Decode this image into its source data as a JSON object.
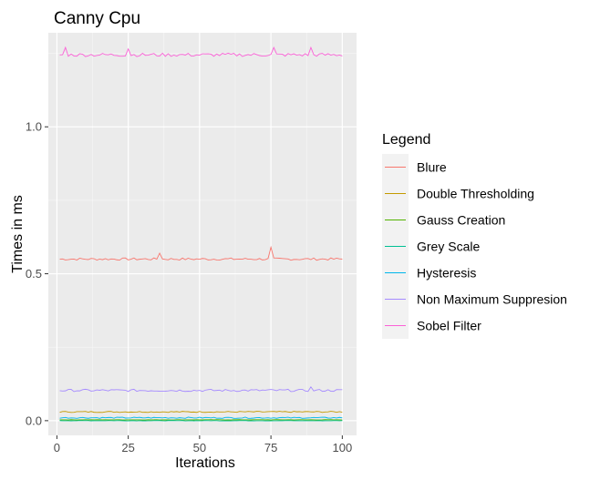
{
  "chart_data": {
    "type": "line",
    "title": "Canny Cpu",
    "xlabel": "Iterations",
    "ylabel": "Times in ms",
    "xlim": [
      -3,
      105
    ],
    "ylim": [
      -0.05,
      1.32
    ],
    "xticks": [
      0,
      25,
      50,
      75,
      100
    ],
    "xtick_labels": [
      "0",
      "25",
      "50",
      "75",
      "100"
    ],
    "yticks": [
      0.0,
      0.5,
      1.0
    ],
    "ytick_labels": [
      "0.0",
      "0.5",
      "1.0"
    ],
    "grid": true,
    "legend_title": "Legend",
    "legend_position": "right",
    "series": [
      {
        "name": "Blure",
        "color": "#F8766D",
        "x_start": 1,
        "x_end": 100,
        "base": 0.55,
        "jitter": 0.004,
        "spikes": [
          {
            "x": 36,
            "y": 0.57
          },
          {
            "x": 75,
            "y": 0.59
          }
        ]
      },
      {
        "name": "Double Thresholding",
        "color": "#C49A00",
        "x_start": 1,
        "x_end": 100,
        "base": 0.03,
        "jitter": 0.002,
        "spikes": []
      },
      {
        "name": "Gauss Creation",
        "color": "#53B400",
        "x_start": 1,
        "x_end": 100,
        "base": 0.003,
        "jitter": 0.0005,
        "spikes": []
      },
      {
        "name": "Grey Scale",
        "color": "#00C094",
        "x_start": 1,
        "x_end": 100,
        "base": 0.0,
        "jitter": 0.0005,
        "spikes": []
      },
      {
        "name": "Hysteresis",
        "color": "#00B6EB",
        "x_start": 1,
        "x_end": 100,
        "base": 0.01,
        "jitter": 0.002,
        "spikes": []
      },
      {
        "name": "Non Maximum Suppresion",
        "color": "#A58AFF",
        "x_start": 1,
        "x_end": 100,
        "base": 0.103,
        "jitter": 0.004,
        "spikes": [
          {
            "x": 89,
            "y": 0.115
          }
        ]
      },
      {
        "name": "Sobel Filter",
        "color": "#FB61D7",
        "x_start": 1,
        "x_end": 100,
        "base": 1.245,
        "jitter": 0.006,
        "spikes": [
          {
            "x": 3,
            "y": 1.27
          },
          {
            "x": 25,
            "y": 1.265
          },
          {
            "x": 76,
            "y": 1.27
          },
          {
            "x": 89,
            "y": 1.27
          }
        ]
      }
    ]
  }
}
